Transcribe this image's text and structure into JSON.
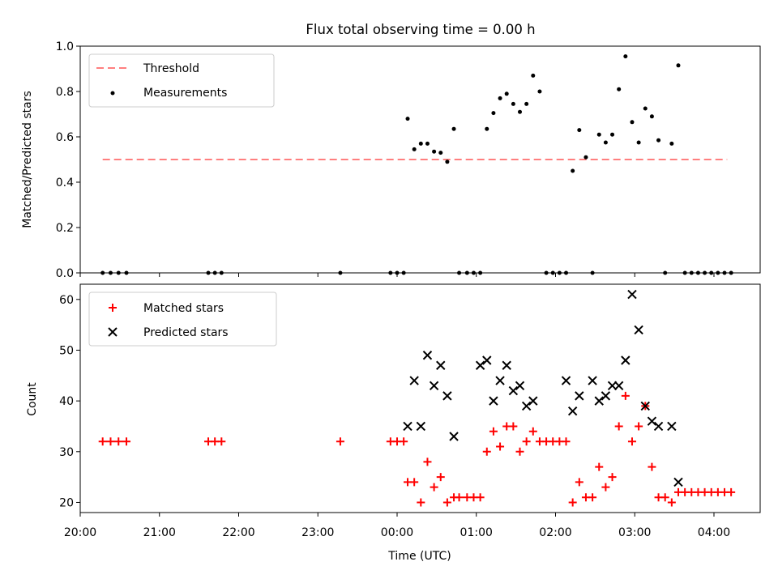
{
  "title": "Flux total observing time = 0.00 h",
  "chart_data": [
    {
      "type": "scatter",
      "ylabel": "Matched/Predicted stars",
      "ylim": [
        0.0,
        1.0
      ],
      "xlim": [
        "20:00",
        "04:35"
      ],
      "yticks": [
        0.0,
        0.2,
        0.4,
        0.6,
        0.8,
        1.0
      ],
      "ytick_labels": [
        "0.0",
        "0.2",
        "0.4",
        "0.6",
        "0.8",
        "1.0"
      ],
      "legend_position": "top-left",
      "grid": false,
      "threshold": {
        "name": "Threshold",
        "color": "#ff7f7f",
        "value": 0.5,
        "x_start": "20:17",
        "x_end": "04:10"
      },
      "measurements": {
        "name": "Measurements",
        "color": "#000000",
        "x": [
          "20:17",
          "20:23",
          "20:29",
          "20:35",
          "21:37",
          "21:42",
          "21:47",
          "23:17",
          "23:55",
          "24:00",
          "24:05",
          "24:08",
          "24:13",
          "24:18",
          "24:23",
          "24:28",
          "24:33",
          "24:38",
          "24:43",
          "24:47",
          "24:53",
          "24:58",
          "25:03",
          "25:08",
          "25:13",
          "25:18",
          "25:23",
          "25:28",
          "25:33",
          "25:38",
          "25:43",
          "25:48",
          "25:53",
          "25:58",
          "26:03",
          "26:08",
          "26:13",
          "26:18",
          "26:23",
          "26:28",
          "26:33",
          "26:38",
          "26:43",
          "26:48",
          "26:53",
          "26:58",
          "27:03",
          "27:08",
          "27:13",
          "27:18",
          "27:23",
          "27:28",
          "27:33",
          "27:38",
          "27:43",
          "27:48",
          "27:53",
          "27:58",
          "28:03",
          "28:08",
          "28:13"
        ],
        "y": [
          0,
          0,
          0,
          0,
          0,
          0,
          0,
          0,
          0,
          0,
          0,
          0.68,
          0.545,
          0.57,
          0.57,
          0.535,
          0.53,
          0.49,
          0.635,
          0,
          0,
          0,
          0,
          0.635,
          0.705,
          0.77,
          0.79,
          0.745,
          0.71,
          0.745,
          0.87,
          0.8,
          0,
          0,
          0,
          0,
          0.45,
          0.63,
          0.51,
          0,
          0.61,
          0.575,
          0.61,
          0.81,
          0.955,
          0.665,
          0.575,
          0.725,
          0.69,
          0.585,
          0,
          0.57,
          0.915,
          0,
          0,
          0,
          0,
          0,
          0,
          0,
          0
        ]
      }
    },
    {
      "type": "scatter",
      "xlabel": "Time (UTC)",
      "ylabel": "Count",
      "ylim": [
        18,
        63
      ],
      "xlim": [
        "20:00",
        "04:35"
      ],
      "yticks": [
        20,
        30,
        40,
        50,
        60
      ],
      "ytick_labels": [
        "20",
        "30",
        "40",
        "50",
        "60"
      ],
      "xticks": [
        "20:00",
        "21:00",
        "22:00",
        "23:00",
        "00:00",
        "01:00",
        "02:00",
        "03:00",
        "04:00"
      ],
      "legend_position": "top-left",
      "grid": false,
      "matched": {
        "name": "Matched stars",
        "color": "#ff0000",
        "x": [
          "20:17",
          "20:23",
          "20:29",
          "20:35",
          "21:37",
          "21:42",
          "21:47",
          "23:17",
          "23:55",
          "24:00",
          "24:05",
          "24:08",
          "24:13",
          "24:18",
          "24:23",
          "24:28",
          "24:33",
          "24:38",
          "24:43",
          "24:47",
          "24:53",
          "24:58",
          "25:03",
          "25:08",
          "25:13",
          "25:18",
          "25:23",
          "25:28",
          "25:33",
          "25:38",
          "25:43",
          "25:48",
          "25:53",
          "25:58",
          "26:03",
          "26:08",
          "26:13",
          "26:18",
          "26:23",
          "26:28",
          "26:33",
          "26:38",
          "26:43",
          "26:48",
          "26:53",
          "26:58",
          "27:03",
          "27:08",
          "27:13",
          "27:18",
          "27:23",
          "27:28",
          "27:33",
          "27:38",
          "27:43",
          "27:48",
          "27:53",
          "27:58",
          "28:03",
          "28:08",
          "28:13"
        ],
        "y": [
          32,
          32,
          32,
          32,
          32,
          32,
          32,
          32,
          32,
          32,
          32,
          24,
          24,
          20,
          28,
          23,
          25,
          20,
          21,
          21,
          21,
          21,
          21,
          30,
          34,
          31,
          35,
          35,
          30,
          32,
          34,
          32,
          32,
          32,
          32,
          32,
          20,
          24,
          21,
          21,
          27,
          23,
          25,
          35,
          41,
          32,
          35,
          39,
          27,
          21,
          21,
          20,
          22,
          22,
          22,
          22,
          22,
          22,
          22,
          22,
          22
        ]
      },
      "predicted": {
        "name": "Predicted stars",
        "color": "#000000",
        "x": [
          "24:08",
          "24:13",
          "24:18",
          "24:23",
          "24:28",
          "24:33",
          "24:38",
          "24:43",
          "25:03",
          "25:08",
          "25:13",
          "25:18",
          "25:23",
          "25:28",
          "25:33",
          "25:38",
          "25:43",
          "26:08",
          "26:13",
          "26:18",
          "26:28",
          "26:33",
          "26:38",
          "26:43",
          "26:48",
          "26:53",
          "26:58",
          "27:03",
          "27:08",
          "27:13",
          "27:18",
          "27:28",
          "27:33"
        ],
        "y": [
          35,
          44,
          35,
          49,
          43,
          47,
          41,
          33,
          47,
          48,
          40,
          44,
          47,
          42,
          43,
          39,
          40,
          44,
          38,
          41,
          44,
          40,
          41,
          43,
          43,
          48,
          61,
          54,
          39,
          36,
          35,
          35,
          24
        ]
      }
    }
  ]
}
